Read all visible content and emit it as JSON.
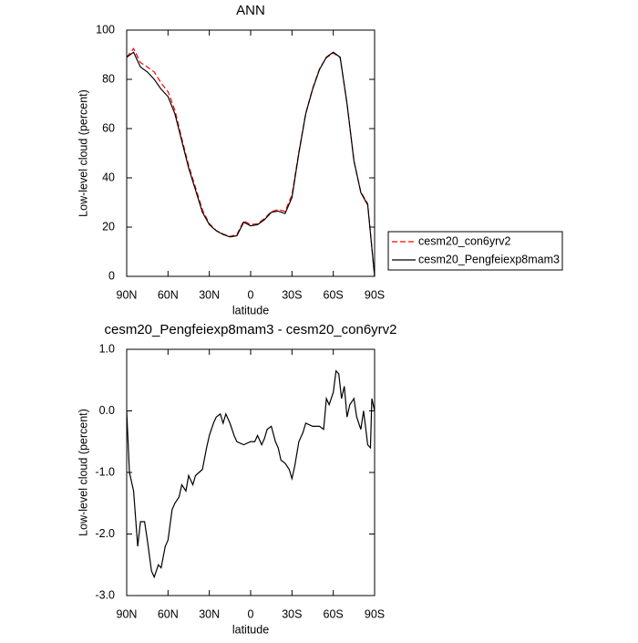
{
  "chart_data": [
    {
      "type": "line",
      "title": "ANN",
      "ylabel": "Low-level cloud (percent)",
      "xlabel": "latitude",
      "x": [
        90,
        85,
        80,
        75,
        70,
        65,
        60,
        55,
        50,
        45,
        40,
        35,
        30,
        25,
        20,
        15,
        10,
        5,
        0,
        -5,
        -10,
        -15,
        -20,
        -25,
        -30,
        -35,
        -40,
        -45,
        -50,
        -55,
        -60,
        -65,
        -70,
        -75,
        -80,
        -85,
        -90
      ],
      "series": [
        {
          "name": "cesm20_con6yrv2",
          "color": "#ff0000",
          "line_style": "dashed",
          "values": [
            89,
            92.5,
            86.8,
            85,
            83,
            78.5,
            75,
            67.5,
            56,
            45,
            36,
            27,
            21.4,
            18.6,
            17.2,
            16.2,
            17,
            22.5,
            21,
            21.4,
            23.5,
            26.3,
            27.1,
            26.4,
            33.1,
            50.5,
            66.2,
            76.3,
            84.3,
            88.8,
            90.7,
            88.8,
            70.1,
            46.8,
            34.3,
            29.5,
            0
          ]
        },
        {
          "name": "cesm20_Pengfeiexp8mam3",
          "color": "#000000",
          "line_style": "solid",
          "values": [
            89,
            91,
            85,
            83,
            80,
            76,
            73,
            66,
            55,
            44,
            35,
            26,
            21,
            18.5,
            17,
            16,
            16.5,
            22,
            20.5,
            21,
            23,
            26,
            26.5,
            25.5,
            32,
            50,
            66,
            76,
            84,
            89,
            91,
            89,
            70,
            47,
            34,
            29,
            0
          ]
        }
      ],
      "xlim": [
        90,
        -90
      ],
      "xticks": [
        {
          "value": 90,
          "label": "90N"
        },
        {
          "value": 60,
          "label": "60N"
        },
        {
          "value": 30,
          "label": "30N"
        },
        0,
        {
          "value": -30,
          "label": "30S"
        },
        {
          "value": -60,
          "label": "60S"
        },
        {
          "value": -90,
          "label": "90S"
        }
      ],
      "ylim": [
        0,
        100
      ],
      "yticks": [
        0,
        20,
        40,
        60,
        80,
        100
      ],
      "grid": false,
      "legend": "right"
    },
    {
      "type": "line",
      "title": "cesm20_Pengfeiexp8mam3 - cesm20_con6yrv2",
      "ylabel": "Low-level cloud (percent)",
      "xlabel": "latitude",
      "x": [
        90,
        88,
        85,
        82,
        80,
        77,
        75,
        72,
        70,
        67,
        65,
        62,
        60,
        57,
        55,
        52,
        50,
        47,
        45,
        42,
        40,
        35,
        32,
        30,
        27,
        25,
        22,
        20,
        18,
        15,
        12,
        10,
        5,
        0,
        -3,
        -5,
        -8,
        -10,
        -12,
        -15,
        -18,
        -20,
        -22,
        -25,
        -28,
        -30,
        -32,
        -35,
        -38,
        -40,
        -45,
        -50,
        -53,
        -55,
        -57,
        -60,
        -62,
        -64,
        -66,
        -68,
        -70,
        -72,
        -75,
        -77,
        -80,
        -82,
        -85,
        -87,
        -88,
        -90
      ],
      "series": [
        {
          "name": "cesm20_Pengfeiexp8mam3 - cesm20_con6yrv2",
          "color": "#000000",
          "line_style": "solid",
          "values": [
            0,
            -1.0,
            -1.3,
            -2.2,
            -1.8,
            -1.8,
            -2.1,
            -2.6,
            -2.7,
            -2.5,
            -2.55,
            -2.2,
            -2.1,
            -1.6,
            -1.5,
            -1.4,
            -1.2,
            -1.3,
            -1.05,
            -1.2,
            -1.05,
            -0.95,
            -0.6,
            -0.4,
            -0.2,
            -0.1,
            -0.05,
            -0.2,
            -0.05,
            -0.2,
            -0.4,
            -0.5,
            -0.55,
            -0.5,
            -0.5,
            -0.4,
            -0.55,
            -0.45,
            -0.3,
            -0.25,
            -0.5,
            -0.6,
            -0.8,
            -0.85,
            -0.95,
            -1.1,
            -0.9,
            -0.5,
            -0.35,
            -0.2,
            -0.25,
            -0.25,
            -0.3,
            0.2,
            0.1,
            0.3,
            0.65,
            0.6,
            0.2,
            0.4,
            -0.1,
            0.1,
            0.2,
            -0.1,
            -0.3,
            0.0,
            -0.55,
            -0.6,
            0.2,
            0.0
          ]
        }
      ],
      "xlim": [
        90,
        -90
      ],
      "xticks": [
        {
          "value": 90,
          "label": "90N"
        },
        {
          "value": 60,
          "label": "60N"
        },
        {
          "value": 30,
          "label": "30N"
        },
        0,
        {
          "value": -30,
          "label": "30S"
        },
        {
          "value": -60,
          "label": "60S"
        },
        {
          "value": -90,
          "label": "90S"
        }
      ],
      "ylim": [
        -3,
        1
      ],
      "yticks": [
        {
          "value": -3,
          "label": "-3.0"
        },
        {
          "value": -2,
          "label": "-2.0"
        },
        {
          "value": -1,
          "label": "-1.0"
        },
        {
          "value": 0,
          "label": "0.0"
        },
        {
          "value": 1,
          "label": "1.0"
        }
      ],
      "grid": false
    }
  ]
}
